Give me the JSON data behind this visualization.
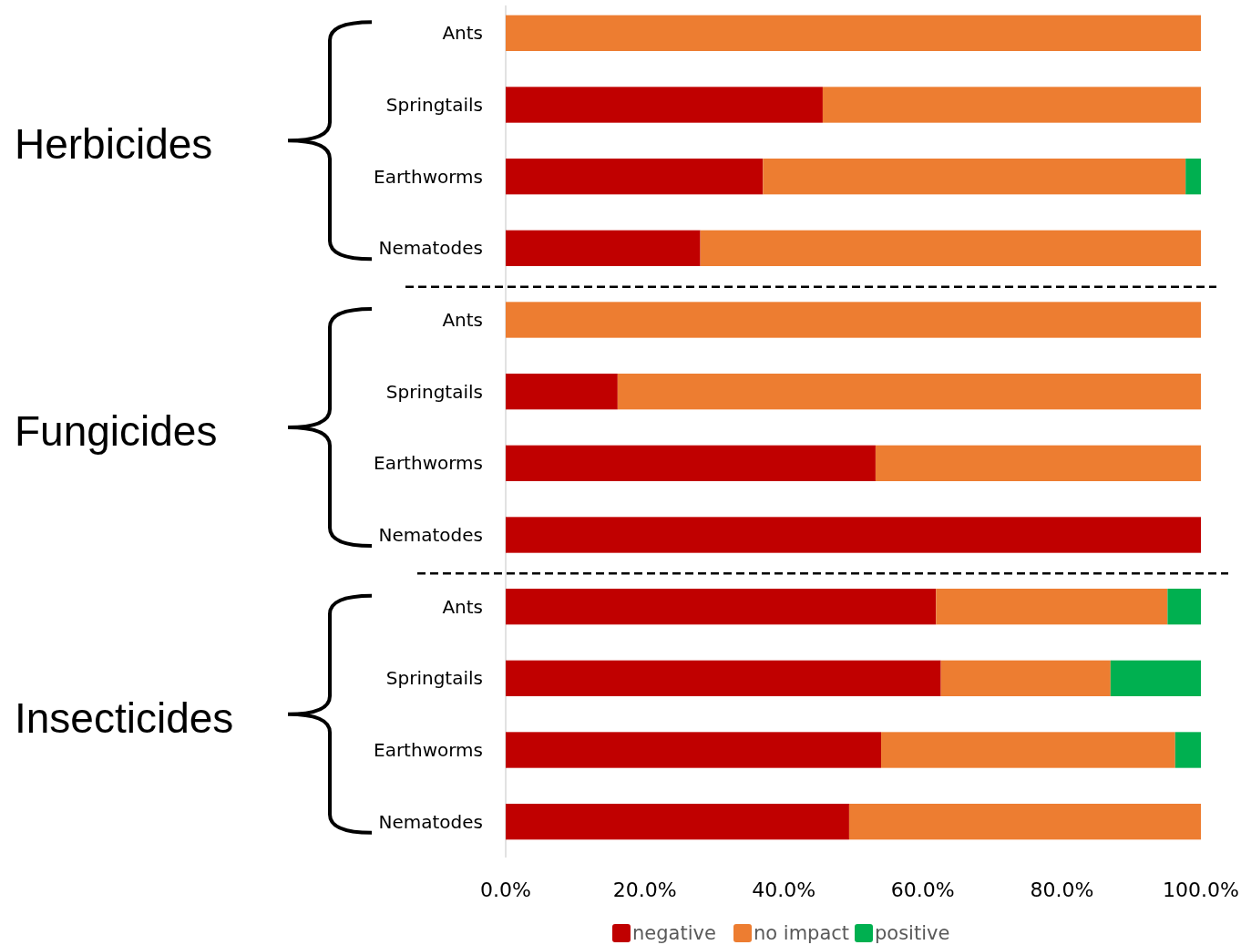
{
  "chart_data": {
    "type": "bar",
    "orientation": "horizontal",
    "stacked": true,
    "categories": [
      "Ants",
      "Springtails",
      "Earthworms",
      "Nematodes",
      "Ants",
      "Springtails",
      "Earthworms",
      "Nematodes",
      "Ants",
      "Springtails",
      "Earthworms",
      "Nematodes"
    ],
    "series": [
      {
        "name": "negative",
        "color": "#c00000",
        "values": [
          0,
          45.6,
          37.0,
          28.0,
          0,
          16.1,
          53.2,
          100,
          61.9,
          62.6,
          54.0,
          49.4
        ]
      },
      {
        "name": "no impact",
        "color": "#ed7d31",
        "values": [
          100,
          54.4,
          60.8,
          72.0,
          100,
          83.9,
          46.8,
          0,
          33.3,
          24.4,
          42.3,
          50.6
        ]
      },
      {
        "name": "positive",
        "color": "#00b050",
        "values": [
          0,
          0,
          2.2,
          0,
          0,
          0,
          0,
          0,
          4.8,
          13.0,
          3.7,
          0
        ]
      }
    ],
    "xlim": [
      0,
      100
    ],
    "xticks": [
      {
        "value": 0,
        "label": "0.0%"
      },
      {
        "value": 20,
        "label": "20.0%"
      },
      {
        "value": 40,
        "label": "40.0%"
      },
      {
        "value": 60,
        "label": "60.0%"
      },
      {
        "value": 80,
        "label": "80.0%"
      },
      {
        "value": 100,
        "label": "100.0%"
      }
    ],
    "annotations": [
      "Herbicides",
      "Fungicides",
      "Insecticides"
    ],
    "legend": "bottom",
    "grid": false
  }
}
